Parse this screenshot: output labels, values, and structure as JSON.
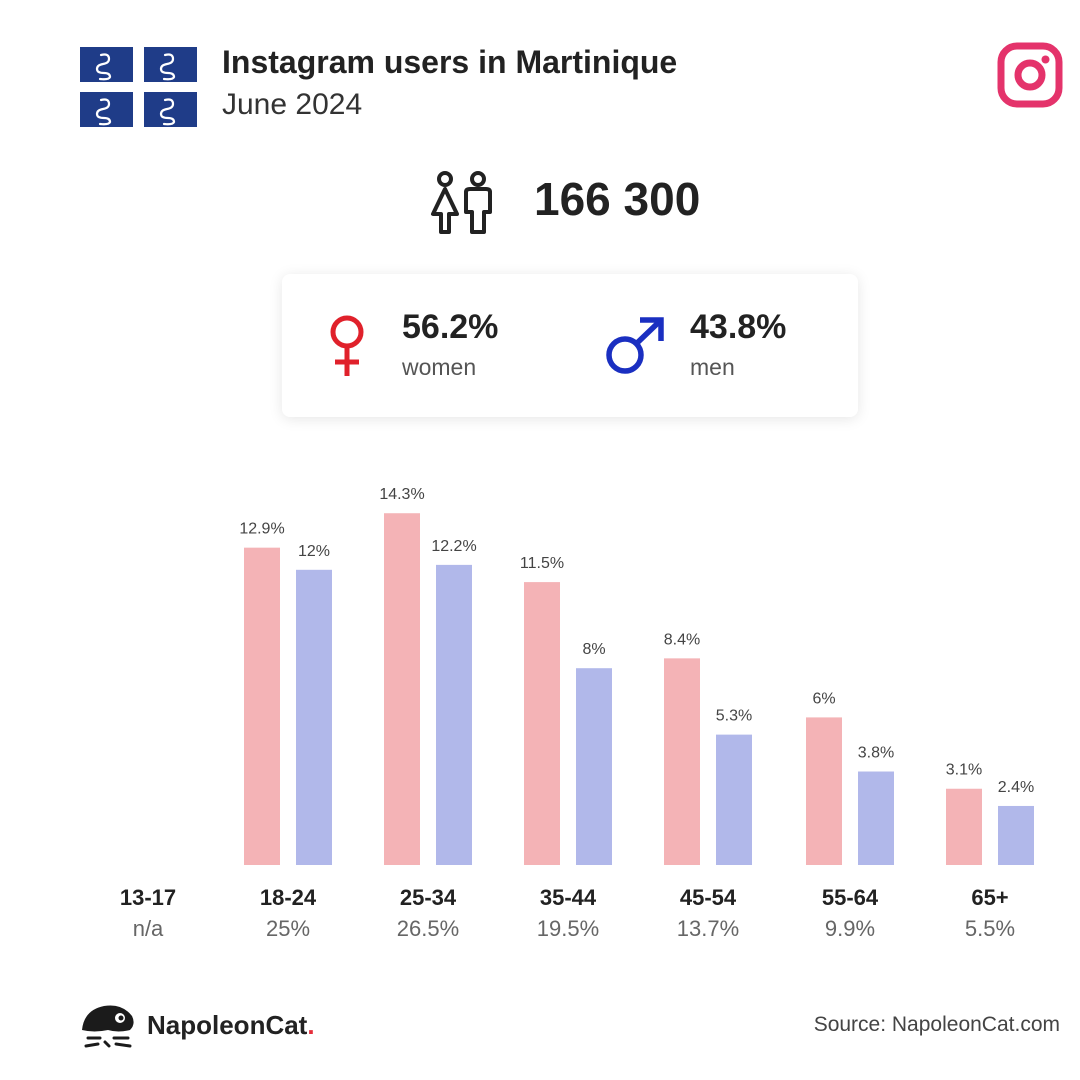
{
  "header": {
    "title": "Instagram users in Martinique",
    "subtitle": "June 2024"
  },
  "total": {
    "value": "166 300",
    "icon": "people-icon"
  },
  "gender": {
    "female": {
      "percent": "56.2%",
      "label": "women",
      "color": "#e0212b"
    },
    "male": {
      "percent": "43.8%",
      "label": "men",
      "color": "#1a2fc1"
    }
  },
  "chart_data": {
    "type": "bar",
    "categories": [
      "13-17",
      "18-24",
      "25-34",
      "35-44",
      "45-54",
      "55-64",
      "65+"
    ],
    "category_totals": [
      "n/a",
      "25%",
      "26.5%",
      "19.5%",
      "13.7%",
      "9.9%",
      "5.5%"
    ],
    "series": [
      {
        "name": "women",
        "values": [
          null,
          12.9,
          14.3,
          11.5,
          8.4,
          6,
          3.1
        ],
        "labels": [
          "",
          "12.9%",
          "14.3%",
          "11.5%",
          "8.4%",
          "6%",
          "3.1%"
        ],
        "color": "#f4b3b6"
      },
      {
        "name": "men",
        "values": [
          null,
          12,
          12.2,
          8,
          5.3,
          3.8,
          2.4
        ],
        "labels": [
          "",
          "12%",
          "12.2%",
          "8%",
          "5.3%",
          "3.8%",
          "2.4%"
        ],
        "color": "#b1b8ea"
      }
    ],
    "ylim": [
      0,
      14.3
    ],
    "grid": false
  },
  "footer": {
    "brand": "NapoleonCat",
    "brand_dot": ".",
    "source": "Source: NapoleonCat.com"
  },
  "colors": {
    "instagram": "#e4336b",
    "flag_blue": "#1f3c88"
  }
}
